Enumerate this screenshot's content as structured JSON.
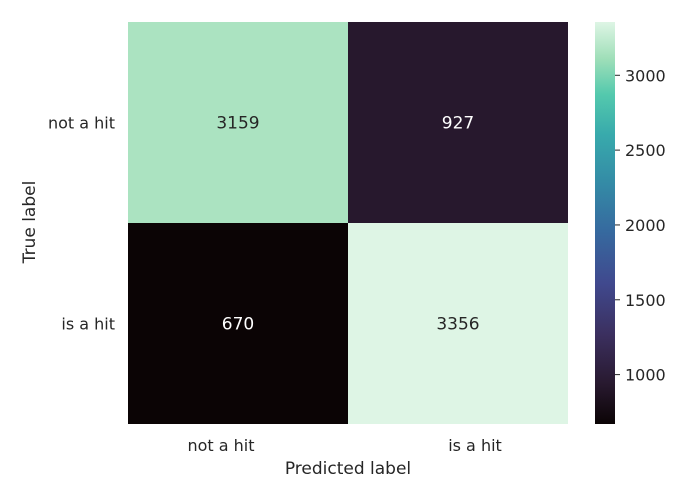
{
  "chart_data": {
    "type": "heatmap",
    "title": "",
    "xlabel": "Predicted label",
    "ylabel": "True label",
    "x_categories": [
      "not a hit",
      "is a hit"
    ],
    "y_categories": [
      "not a hit",
      "is a hit"
    ],
    "values": [
      [
        3159,
        927
      ],
      [
        670,
        3356
      ]
    ],
    "colormap": "mako",
    "colorbar": {
      "ticks": [
        1000,
        1500,
        2000,
        2500,
        3000
      ],
      "range": [
        670,
        3356
      ]
    },
    "grid": false
  }
}
